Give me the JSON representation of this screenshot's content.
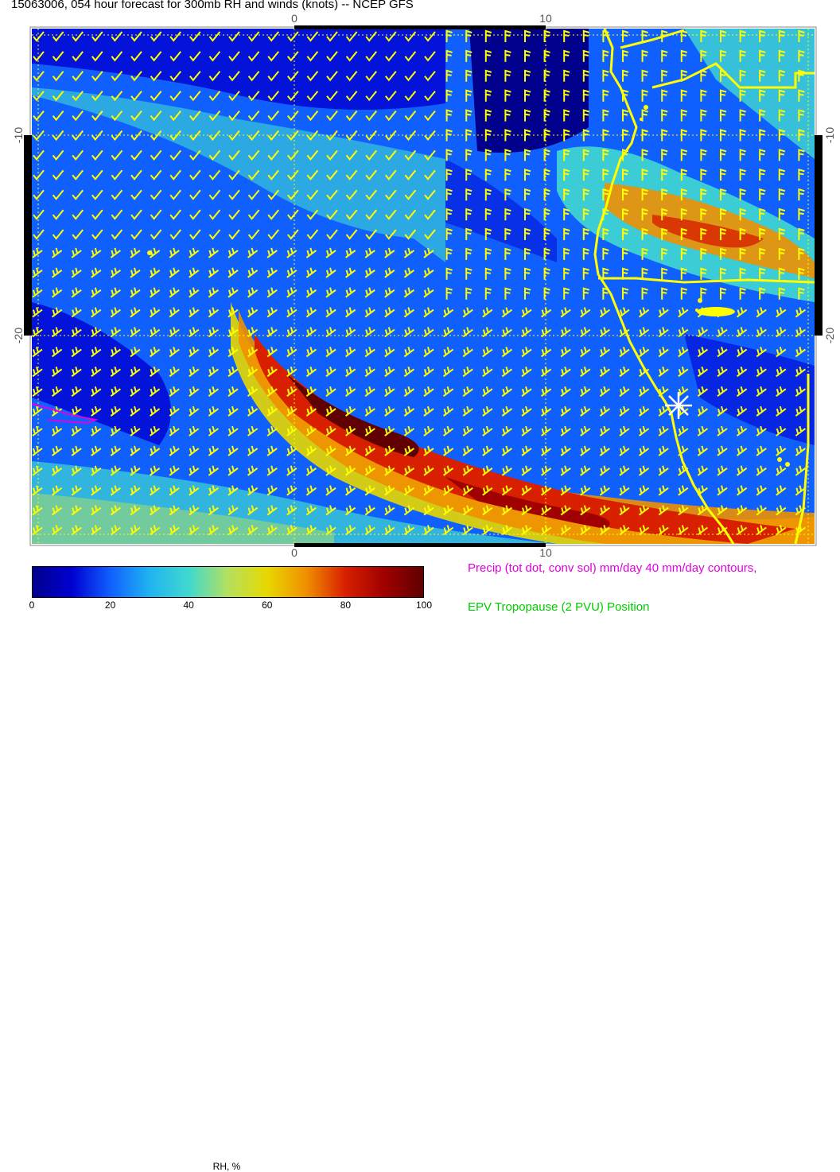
{
  "title": "15063006, 054 hour forecast for 300mb RH and winds (knots) -- NCEP GFS",
  "map": {
    "lon_labels_top": [
      "0",
      "10"
    ],
    "lon_labels_bottom": [
      "0",
      "10"
    ],
    "lat_labels_left": [
      "-10",
      "-20"
    ],
    "lat_labels_right": [
      "-10",
      "-20"
    ],
    "colors": {
      "coastline": "#ffff00",
      "barb": "#ffff00",
      "grid": "#ffff00",
      "precip_contour": "#e100e1",
      "marker": "#ffffff"
    },
    "field": "RH",
    "marker_icon": "asterisk-icon"
  },
  "colorbar": {
    "ticks": [
      "0",
      "20",
      "40",
      "60",
      "80",
      "100"
    ],
    "label": "RH, %",
    "colors": [
      "#00008c",
      "#0000d0",
      "#1060ff",
      "#20b4f0",
      "#40d8d0",
      "#b4e060",
      "#e8d800",
      "#f09000",
      "#d82000",
      "#a00000",
      "#600000"
    ]
  },
  "legend": {
    "precip": "Precip (tot dot, conv sol) mm/day 40 mm/day contours,",
    "epv": "EPV Tropopause (2 PVU) Position"
  }
}
